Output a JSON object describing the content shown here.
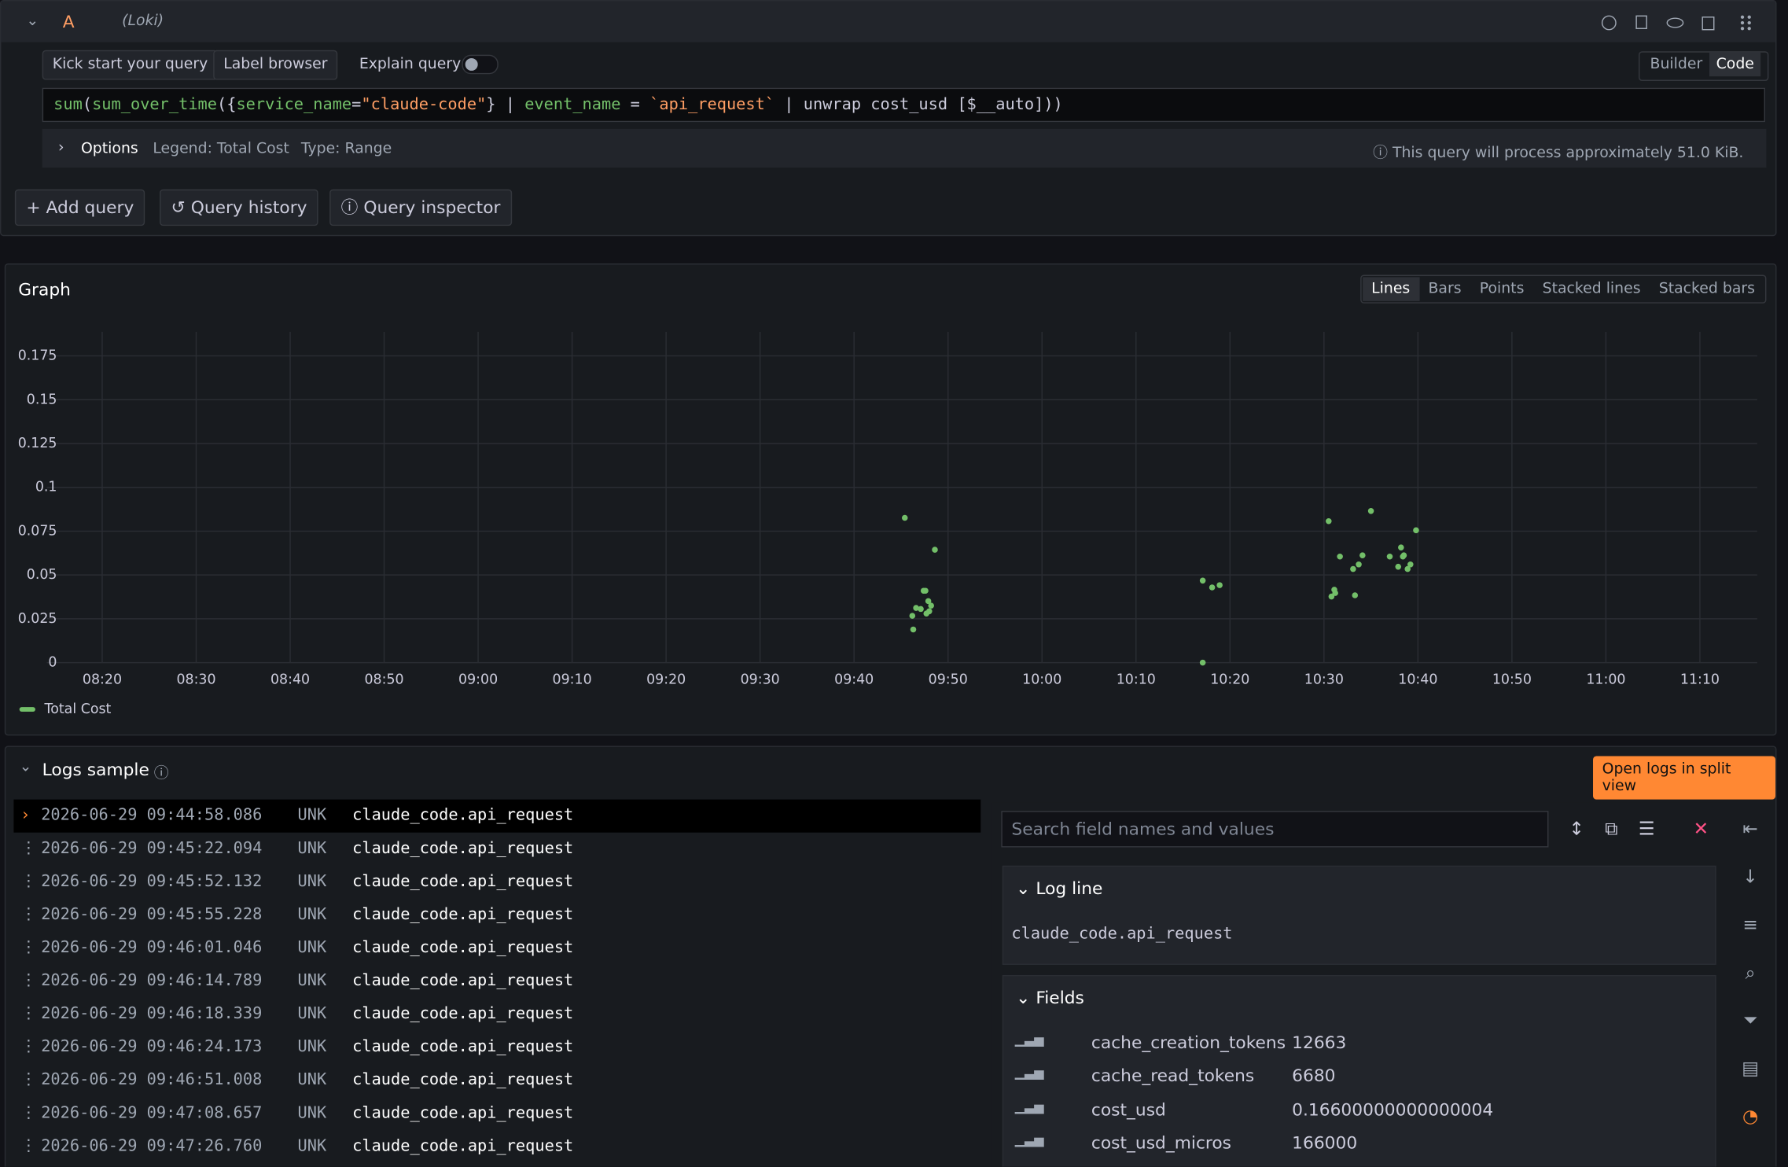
{
  "query": {
    "letter": "A",
    "datasource": "(Loki)",
    "buttons": [
      "Kick start your query",
      "Label browser"
    ],
    "explain": "Explain query",
    "modes": [
      "Builder",
      "Code"
    ],
    "expr": [
      "sum",
      "(",
      "sum_over_time",
      "({",
      "service_name",
      "=",
      "\"claude-code\"",
      "} | ",
      "event_name",
      " = ",
      "`api_request`",
      " | unwrap cost_usd [$__auto]))"
    ],
    "options": "Options",
    "legend": "Legend: Total Cost",
    "qtype": "Type: Range",
    "estimate": "This query will process approximately 51.0 KiB."
  },
  "actions": [
    "Add query",
    "Query history",
    "Query inspector"
  ],
  "graph": {
    "title": "Graph",
    "styles": [
      "Lines",
      "Bars",
      "Points",
      "Stacked lines",
      "Stacked bars"
    ]
  },
  "chart_data": {
    "type": "scatter",
    "grid": true,
    "series": [
      {
        "name": "Total Cost",
        "color": "#73bf69",
        "x": [
          585.4,
          588.6,
          587.4,
          587.6,
          587.9,
          586.6,
          587.1,
          588.2,
          588.0,
          586.2,
          587.7,
          586.3,
          617.1,
          618.1,
          618.9,
          617.1,
          630.5,
          635.0,
          639.8,
          631.7,
          634.1,
          633.7,
          633.1,
          638.2,
          637.0,
          638.5,
          639.2,
          638.9,
          637.9,
          631.1,
          631.2,
          630.8,
          633.3,
          638.4
        ],
        "values": [
          0.0826,
          0.0644,
          0.041,
          0.041,
          0.0351,
          0.0312,
          0.0306,
          0.0325,
          0.0293,
          0.0267,
          0.028,
          0.0189,
          0.0468,
          0.0429,
          0.0442,
          0,
          0.0807,
          0.0865,
          0.0755,
          0.0605,
          0.0612,
          0.056,
          0.0534,
          0.0657,
          0.0605,
          0.0612,
          0.056,
          0.0534,
          0.0547,
          0.0416,
          0.0397,
          0.0377,
          0.0384,
          0.0605
        ]
      }
    ],
    "xlim": [
      494.1,
      676.1
    ],
    "ylim": [
      0,
      0.1887
    ],
    "xticks": [
      {
        "value": 500,
        "label": "08:20"
      },
      {
        "value": 510,
        "label": "08:30"
      },
      {
        "value": 520,
        "label": "08:40"
      },
      {
        "value": 530,
        "label": "08:50"
      },
      {
        "value": 540,
        "label": "09:00"
      },
      {
        "value": 550,
        "label": "09:10"
      },
      {
        "value": 560,
        "label": "09:20"
      },
      {
        "value": 570,
        "label": "09:30"
      },
      {
        "value": 580,
        "label": "09:40"
      },
      {
        "value": 590,
        "label": "09:50"
      },
      {
        "value": 600,
        "label": "10:00"
      },
      {
        "value": 610,
        "label": "10:10"
      },
      {
        "value": 620,
        "label": "10:20"
      },
      {
        "value": 630,
        "label": "10:30"
      },
      {
        "value": 640,
        "label": "10:40"
      },
      {
        "value": 650,
        "label": "10:50"
      },
      {
        "value": 660,
        "label": "11:00"
      },
      {
        "value": 670,
        "label": "11:10"
      }
    ],
    "yticks": [
      0,
      0.025,
      0.05,
      0.075,
      0.1,
      0.125,
      0.15,
      0.175
    ]
  },
  "logs": {
    "title": "Logs sample",
    "open": "Open logs in split view",
    "rows": [
      [
        "2026-06-29 09:44:58.086",
        "UNK",
        "claude_code.api_request"
      ],
      [
        "2026-06-29 09:45:22.094",
        "UNK",
        "claude_code.api_request"
      ],
      [
        "2026-06-29 09:45:52.132",
        "UNK",
        "claude_code.api_request"
      ],
      [
        "2026-06-29 09:45:55.228",
        "UNK",
        "claude_code.api_request"
      ],
      [
        "2026-06-29 09:46:01.046",
        "UNK",
        "claude_code.api_request"
      ],
      [
        "2026-06-29 09:46:14.789",
        "UNK",
        "claude_code.api_request"
      ],
      [
        "2026-06-29 09:46:18.339",
        "UNK",
        "claude_code.api_request"
      ],
      [
        "2026-06-29 09:46:24.173",
        "UNK",
        "claude_code.api_request"
      ],
      [
        "2026-06-29 09:46:51.008",
        "UNK",
        "claude_code.api_request"
      ],
      [
        "2026-06-29 09:47:08.657",
        "UNK",
        "claude_code.api_request"
      ],
      [
        "2026-06-29 09:47:26.760",
        "UNK",
        "claude_code.api_request"
      ]
    ]
  },
  "details": {
    "search": "Search field names and values",
    "log_line_title": "Log line",
    "log_line": "claude_code.api_request",
    "fields_title": "Fields",
    "fields": [
      [
        "cache_creation_tokens",
        "12663"
      ],
      [
        "cache_read_tokens",
        "6680"
      ],
      [
        "cost_usd",
        "0.16600000000000004"
      ],
      [
        "cost_usd_micros",
        "166000"
      ]
    ]
  }
}
